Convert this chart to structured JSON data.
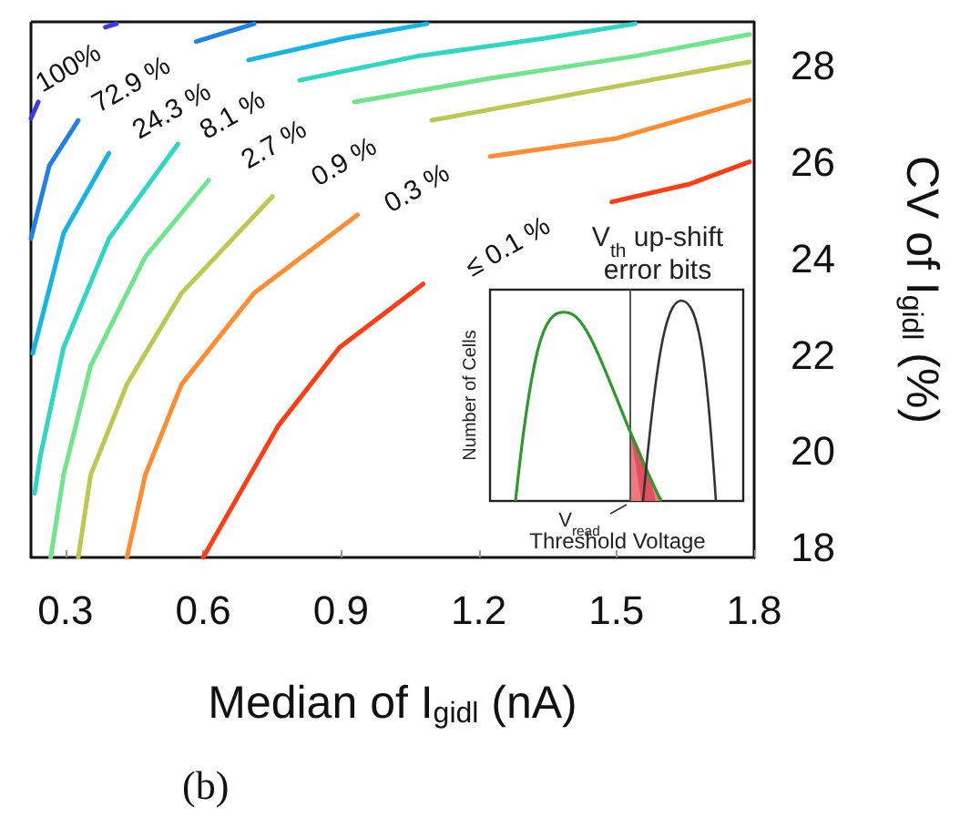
{
  "chart_data": {
    "type": "line",
    "xlabel": "Median of I$_{gidl}$ (nA)",
    "ylabel": "CV of I$_{gidl}$ (%)",
    "xlim": [
      0.225,
      1.8
    ],
    "xticks": [
      0.3,
      0.6,
      0.9,
      1.2,
      1.5,
      1.8
    ],
    "ylim": [
      17.8,
      28.9
    ],
    "yticks": [
      18,
      20,
      22,
      24,
      26,
      28
    ],
    "grid": false,
    "legend": false,
    "marker": "none",
    "line_style": "solid",
    "annotations": [
      "(b)",
      "V$_{th}$ up-shift",
      "error bits",
      "Number of Cells",
      "V$_{read}$",
      "Threshold Voltage"
    ],
    "series": [
      {
        "name": "100%",
        "color": "#3b3be6",
        "x": [
          0.225,
          0.241,
          null,
          0.387,
          0.411
        ],
        "values": [
          26.9,
          27.24,
          null,
          28.79,
          28.86
        ]
      },
      {
        "name": "72.9 %",
        "color": "#1f80ea",
        "x": [
          0.225,
          0.265,
          0.328,
          null,
          0.585,
          0.711
        ],
        "values": [
          24.41,
          25.92,
          26.86,
          null,
          28.49,
          28.86
        ]
      },
      {
        "name": "24.3 %",
        "color": "#14b4e4",
        "x": [
          0.229,
          0.296,
          0.395,
          null,
          0.699,
          0.909,
          1.087
        ],
        "values": [
          22.03,
          24.52,
          26.18,
          null,
          28.11,
          28.56,
          28.86
        ]
      },
      {
        "name": "8.1 %",
        "color": "#2cd8c4",
        "x": [
          0.233,
          0.245,
          0.296,
          0.395,
          0.545,
          null,
          0.81,
          1.067,
          1.344,
          1.541
        ],
        "values": [
          19.13,
          19.88,
          22.15,
          24.41,
          26.37,
          null,
          27.69,
          28.19,
          28.56,
          28.86
        ]
      },
      {
        "name": "2.7 %",
        "color": "#70e68c",
        "x": [
          0.268,
          0.296,
          0.355,
          0.474,
          0.612,
          null,
          0.929,
          1.225,
          1.541,
          1.79
        ],
        "values": [
          17.8,
          19.51,
          21.77,
          24.03,
          25.62,
          null,
          27.24,
          27.73,
          28.19,
          28.64
        ]
      },
      {
        "name": "0.9 %",
        "color": "#bcc850",
        "x": [
          0.328,
          0.355,
          0.434,
          0.553,
          0.751,
          null,
          1.098,
          1.423,
          1.79
        ],
        "values": [
          17.8,
          19.51,
          21.39,
          23.28,
          25.28,
          null,
          26.86,
          27.43,
          28.07
        ]
      },
      {
        "name": "0.3 %",
        "color": "#ff8c30",
        "x": [
          0.434,
          0.474,
          0.553,
          0.711,
          0.936,
          null,
          1.225,
          1.502,
          1.79
        ],
        "values": [
          17.8,
          19.51,
          21.39,
          23.28,
          24.9,
          null,
          26.11,
          26.49,
          27.28
        ]
      },
      {
        "name": "≤ 0.1 %",
        "color": "#ff3c14",
        "x": [
          0.6,
          0.763,
          0.897,
          1.079,
          null,
          1.49,
          1.66,
          1.79
        ],
        "values": [
          17.8,
          20.52,
          22.15,
          23.47,
          null,
          25.17,
          25.54,
          26.0
        ]
      }
    ]
  }
}
